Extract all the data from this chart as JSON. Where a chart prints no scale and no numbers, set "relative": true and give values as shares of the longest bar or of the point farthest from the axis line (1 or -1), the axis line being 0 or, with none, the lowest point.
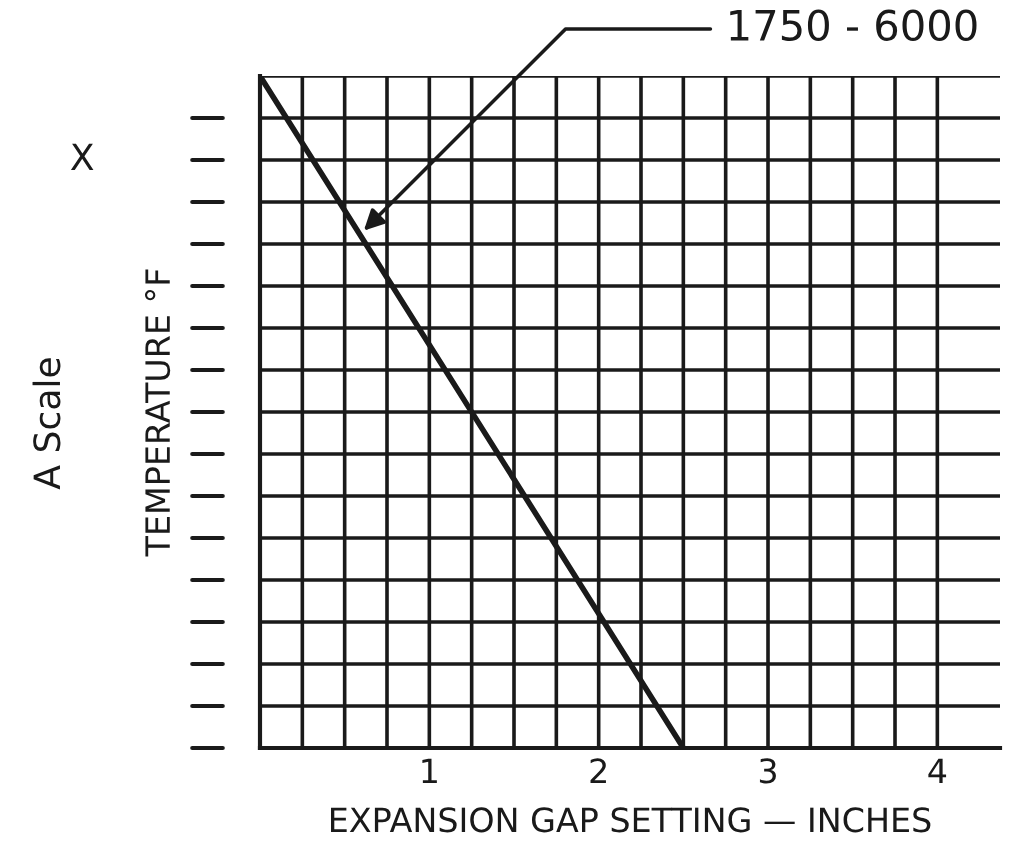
{
  "chart_data": {
    "type": "line",
    "relative": true,
    "xlabel": "EXPANSION GAP SETTING — INCHES",
    "ylabel": "TEMPERATURE °F",
    "x": [
      0,
      2.5
    ],
    "series": [
      {
        "name": "1750 - 6000",
        "color": "#1a1a1a",
        "values": [
          1,
          0
        ]
      }
    ],
    "xlim": [
      0,
      4.37
    ],
    "xticks": [
      {
        "value": 0.25,
        "label": null
      },
      {
        "value": 0.5,
        "label": null
      },
      {
        "value": 0.75,
        "label": null
      },
      1,
      {
        "value": 1.25,
        "label": null
      },
      {
        "value": 1.5,
        "label": null
      },
      {
        "value": 1.75,
        "label": null
      },
      2,
      {
        "value": 2.25,
        "label": null
      },
      {
        "value": 2.5,
        "label": null
      },
      {
        "value": 2.75,
        "label": null
      },
      3,
      {
        "value": 3.25,
        "label": null
      },
      {
        "value": 3.5,
        "label": null
      },
      {
        "value": 3.75,
        "label": null
      },
      4
    ],
    "annotations": [
      "X",
      "A Scale"
    ],
    "grid": true,
    "tick_labels": "x",
    "legend": false,
    "marker": "none",
    "line_style": "solid"
  }
}
